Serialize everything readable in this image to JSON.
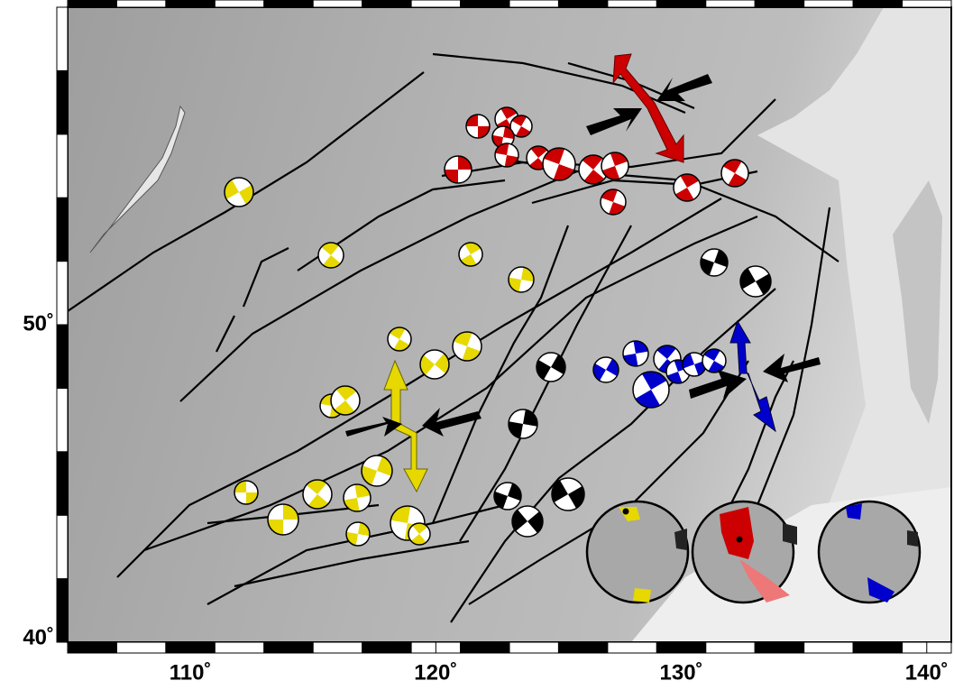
{
  "map": {
    "lon_range": [
      105,
      141
    ],
    "lat_range": [
      40,
      60
    ],
    "lon_ticks": [
      {
        "value": 110,
        "label": "110˚"
      },
      {
        "value": 120,
        "label": "120˚"
      },
      {
        "value": 130,
        "label": "130˚"
      },
      {
        "value": 140,
        "label": "140˚"
      }
    ],
    "lat_ticks": [
      {
        "value": 50,
        "label": "50˚"
      },
      {
        "value": 40,
        "label": "40˚"
      }
    ]
  }
}
